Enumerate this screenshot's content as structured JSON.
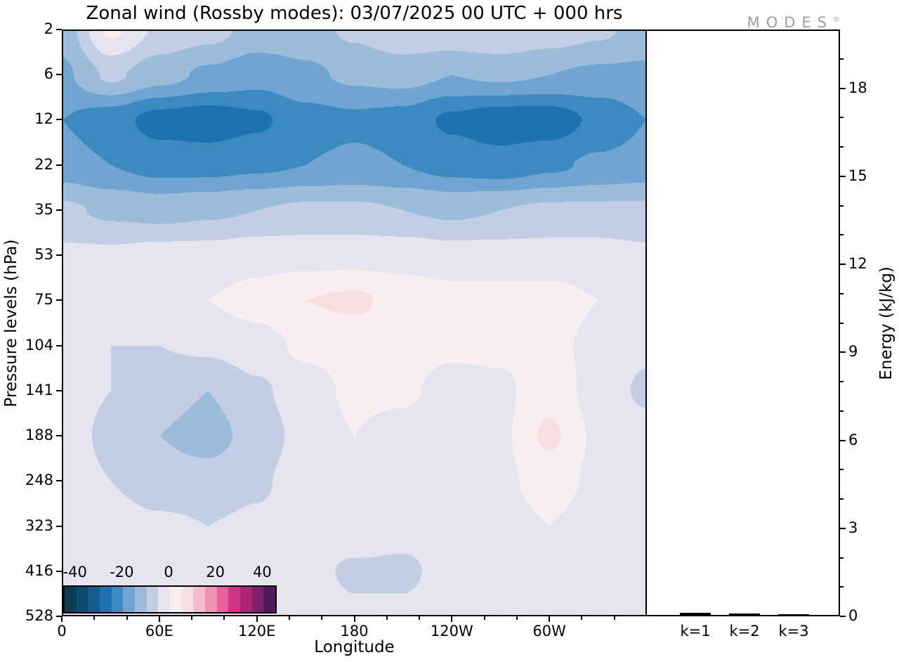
{
  "title": "Zonal wind (Rossby modes):  03/07/2025  00 UTC  + 000 hrs",
  "logo": {
    "text": "MODES",
    "mark": "®"
  },
  "axes": {
    "pressure": {
      "label": "Pressure levels (hPa)",
      "ticks": [
        2,
        6,
        12,
        22,
        35,
        53,
        75,
        104,
        141,
        188,
        248,
        323,
        416,
        528
      ]
    },
    "longitude": {
      "label": "Longitude",
      "ticks": [
        {
          "value": 0,
          "label": "0"
        },
        {
          "value": 60,
          "label": "60E"
        },
        {
          "value": 120,
          "label": "120E"
        },
        {
          "value": 180,
          "label": "180"
        },
        {
          "value": 240,
          "label": "120W"
        },
        {
          "value": 300,
          "label": "60W"
        }
      ],
      "range": [
        0,
        360
      ]
    },
    "energy": {
      "label": "Energy (kJ/kg)",
      "ticks": [
        0,
        3,
        6,
        9,
        12,
        15,
        18
      ],
      "max": 20
    }
  },
  "chart_data": [
    {
      "type": "heatmap",
      "title": "Zonal wind (Rossby modes):  03/07/2025  00 UTC  + 000 hrs",
      "xlabel": "Longitude",
      "ylabel": "Pressure levels (hPa)",
      "x": [
        0,
        30,
        60,
        90,
        120,
        150,
        180,
        210,
        240,
        270,
        300,
        330,
        360
      ],
      "y": [
        2,
        6,
        12,
        22,
        35,
        53,
        75,
        104,
        141,
        188,
        248,
        323,
        416,
        528
      ],
      "vmin": -45,
      "vmax": 45,
      "step": 5,
      "colorbar_ticks": [
        -40,
        -20,
        0,
        20,
        40
      ],
      "colors": [
        "#0d3b51",
        "#0f4a70",
        "#155d91",
        "#1f72b2",
        "#3d8ac2",
        "#6fa5d0",
        "#9cbcdc",
        "#c3cee5",
        "#e6e4ef",
        "#f7eef0",
        "#f8dde2",
        "#f5bccb",
        "#ef92b4",
        "#e6609a",
        "#d03386",
        "#a92478",
        "#7d1f6b",
        "#53195d"
      ],
      "grid": [
        [
          -13,
          1,
          -6,
          -8,
          -12,
          -12,
          -9,
          -6,
          -6,
          -5,
          -7,
          -9,
          -12
        ],
        [
          -16,
          -9,
          -13,
          -16,
          -18,
          -16,
          -14,
          -13,
          -15,
          -14,
          -15,
          -16,
          -16
        ],
        [
          -20,
          -23,
          -27,
          -28,
          -26,
          -22,
          -21,
          -22,
          -26,
          -28,
          -28,
          -24,
          -20
        ],
        [
          -18,
          -20,
          -22,
          -22,
          -21,
          -20,
          -19,
          -20,
          -22,
          -23,
          -21,
          -19,
          -18
        ],
        [
          -9,
          -11,
          -12,
          -11,
          -10,
          -9,
          -9,
          -10,
          -11,
          -10,
          -9,
          -9,
          -9
        ],
        [
          -4,
          -4,
          -3,
          -3,
          -2,
          -2,
          -2,
          -2,
          -3,
          -3,
          -3,
          -3,
          -4
        ],
        [
          -2,
          -2,
          -1,
          0,
          2,
          5,
          6,
          3,
          2,
          2,
          2,
          0,
          -2
        ],
        [
          -3,
          -5,
          -5,
          -4,
          -2,
          1,
          2,
          2,
          1,
          1,
          1,
          -1,
          -4
        ],
        [
          -3,
          -5,
          -8,
          -10,
          -6,
          -2,
          1,
          1,
          -2,
          -1,
          3,
          -2,
          -6
        ],
        [
          -3,
          -6,
          -10,
          -12,
          -8,
          -3,
          0,
          -2,
          -5,
          -1,
          6,
          -1,
          -3
        ],
        [
          -3,
          -5,
          -8,
          -8,
          -6,
          -2,
          0,
          -2,
          -4,
          -1,
          2,
          -1,
          -3
        ],
        [
          -2,
          -3,
          -4,
          -5,
          -4,
          -2,
          -1,
          -3,
          -3,
          -2,
          0,
          -2,
          -2
        ],
        [
          -2,
          -2,
          -3,
          -3,
          -3,
          -3,
          -6,
          -6,
          -3,
          -2,
          -1,
          -2,
          -2
        ],
        [
          -2,
          -2,
          -2,
          -3,
          -2,
          -2,
          -4,
          -4,
          -2,
          -1,
          -1,
          -2,
          -2
        ]
      ]
    },
    {
      "type": "bar",
      "categories": [
        "k=1",
        "k=2",
        "k=3"
      ],
      "values": [
        0.08,
        0.05,
        0.02
      ],
      "ylabel": "Energy (kJ/kg)",
      "ylim": [
        0,
        20
      ],
      "bar_color": "#000000"
    }
  ]
}
